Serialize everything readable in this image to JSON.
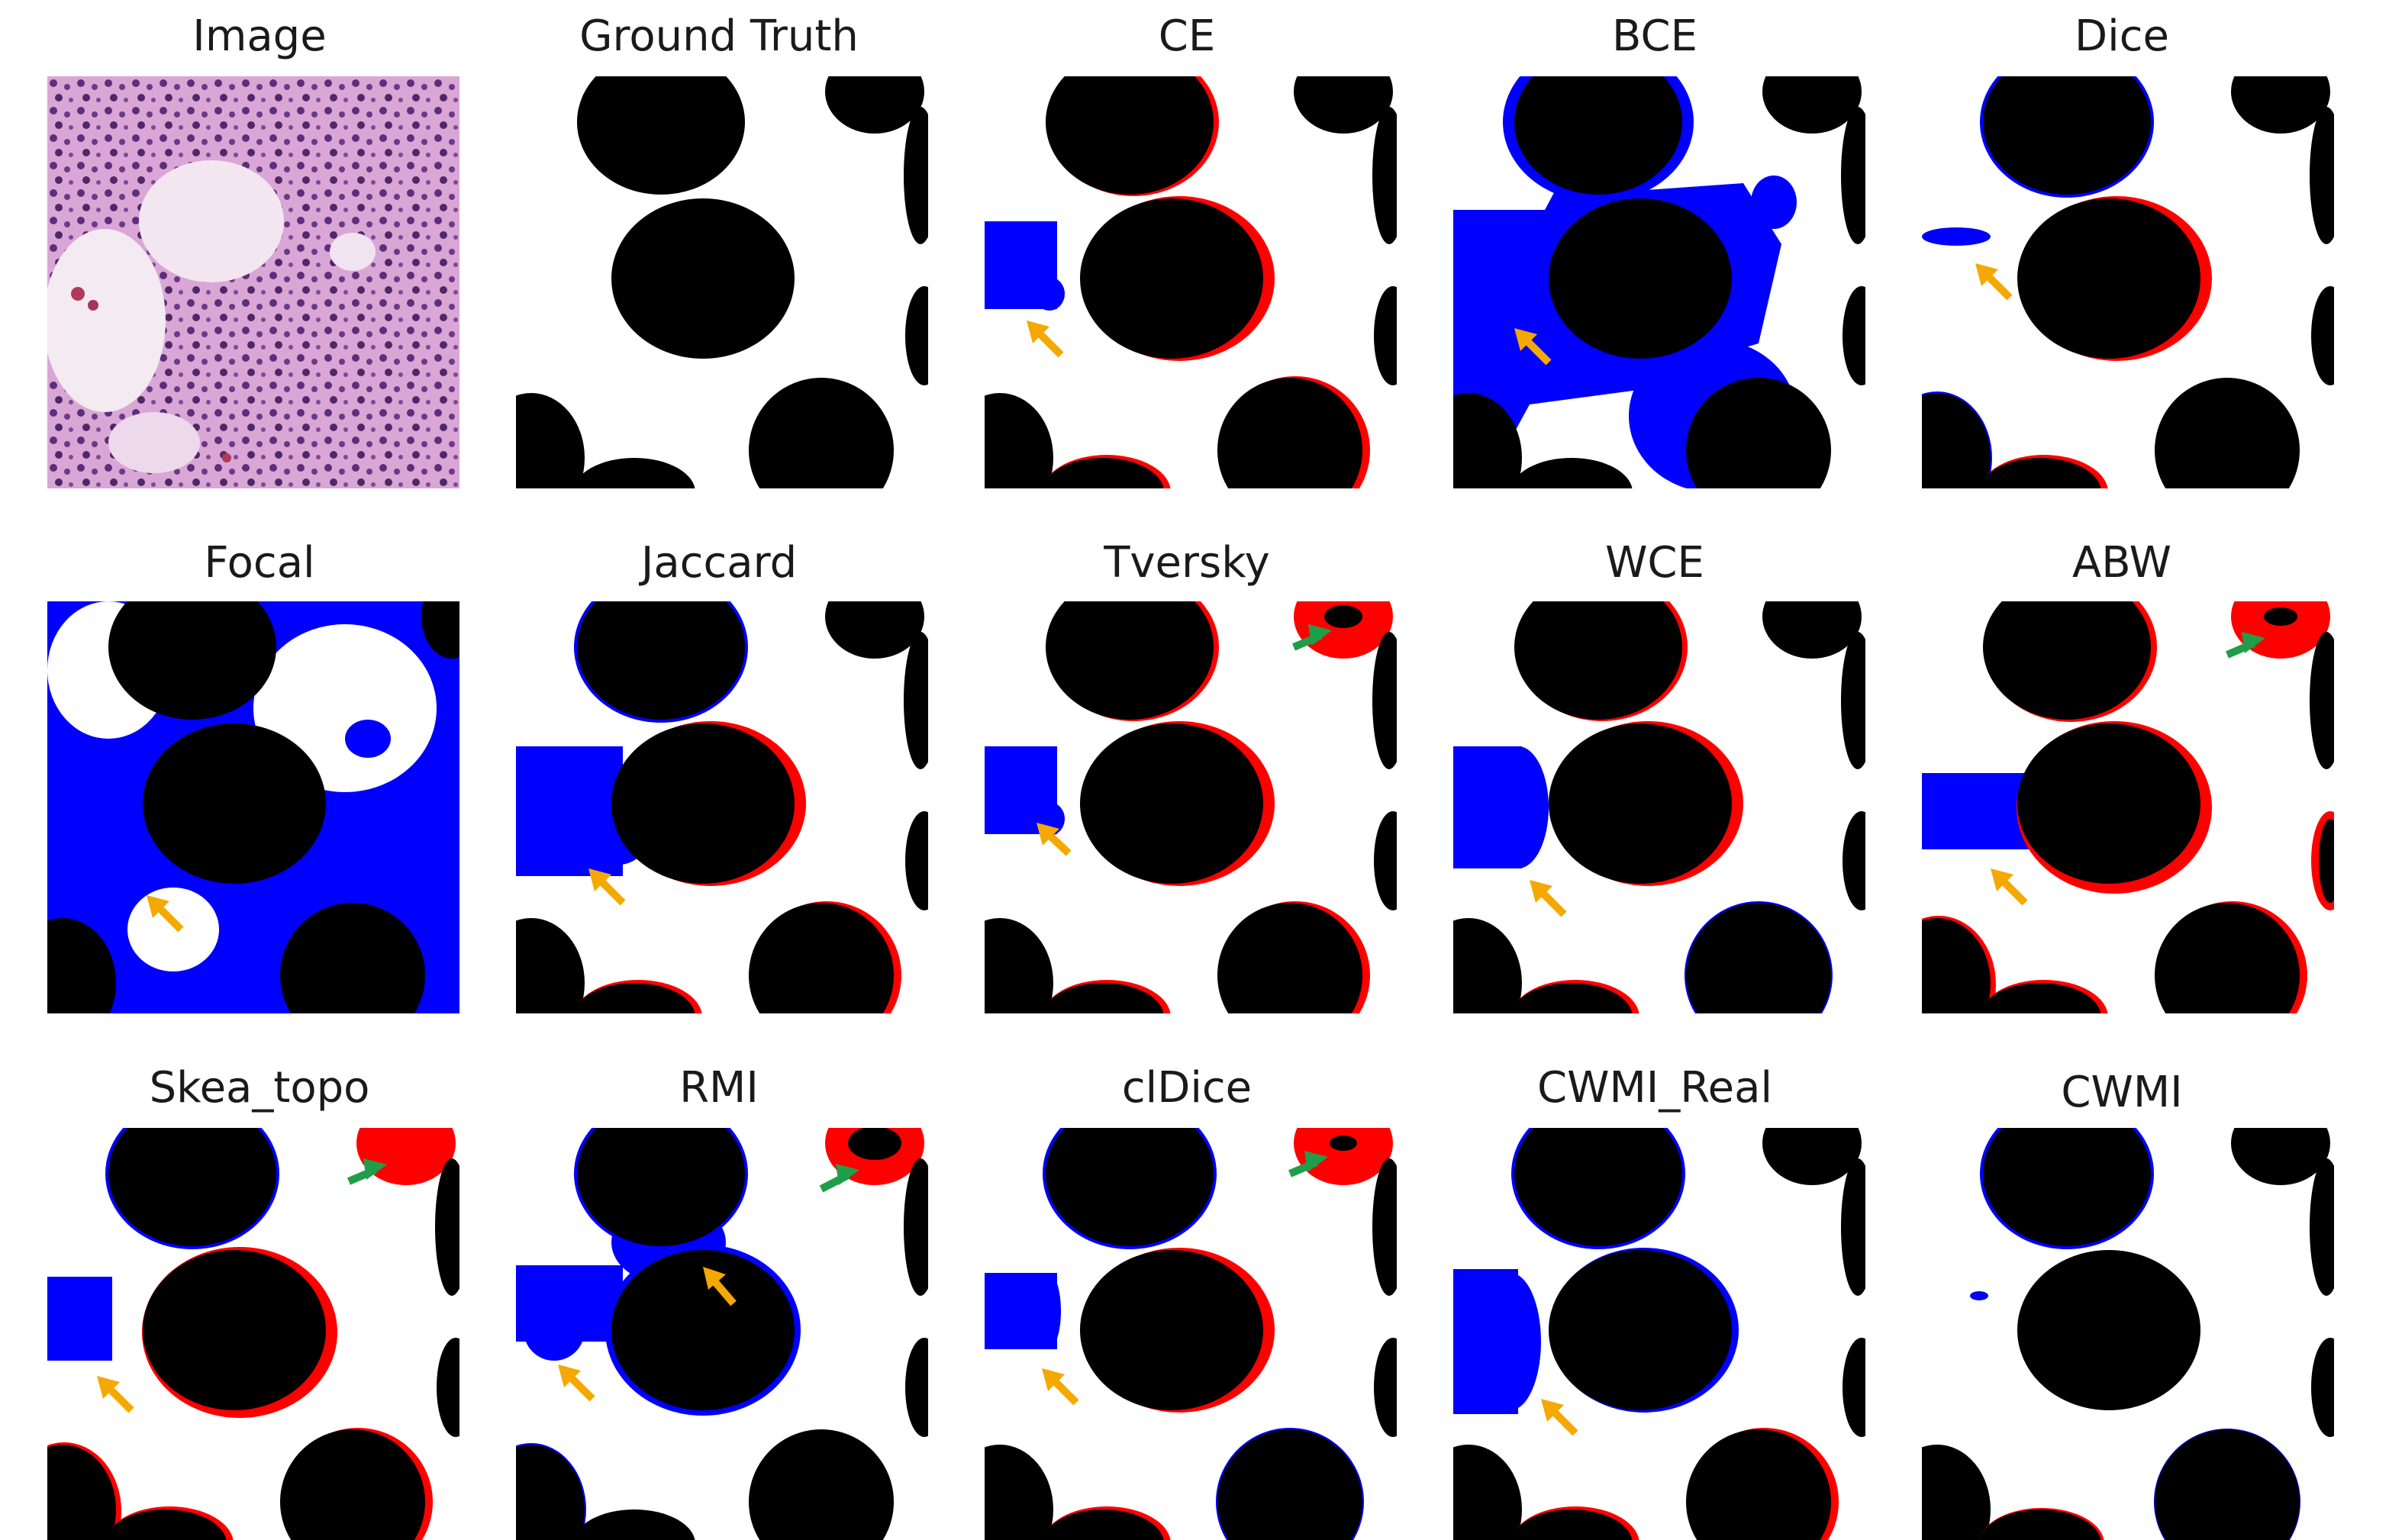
{
  "figure": {
    "panels": [
      {
        "title": "Image"
      },
      {
        "title": "Ground Truth"
      },
      {
        "title": "CE"
      },
      {
        "title": "BCE"
      },
      {
        "title": "Dice"
      },
      {
        "title": "Focal"
      },
      {
        "title": "Jaccard"
      },
      {
        "title": "Tversky"
      },
      {
        "title": "WCE"
      },
      {
        "title": "ABW"
      },
      {
        "title": "Skea_topo"
      },
      {
        "title": "RMI"
      },
      {
        "title": "clDice"
      },
      {
        "title": "CWMI_Real"
      },
      {
        "title": "CWMI"
      }
    ]
  },
  "colors": {
    "foreground": "#000000",
    "background": "#ffffff",
    "false_positive": "#0000ff",
    "false_negative": "#ff0000",
    "orange_arrow": "#f5a800",
    "green_arrow": "#1f9e4a",
    "tissue_pink": "#d9a6d6",
    "nuclei_purple": "#5b2f7a"
  }
}
